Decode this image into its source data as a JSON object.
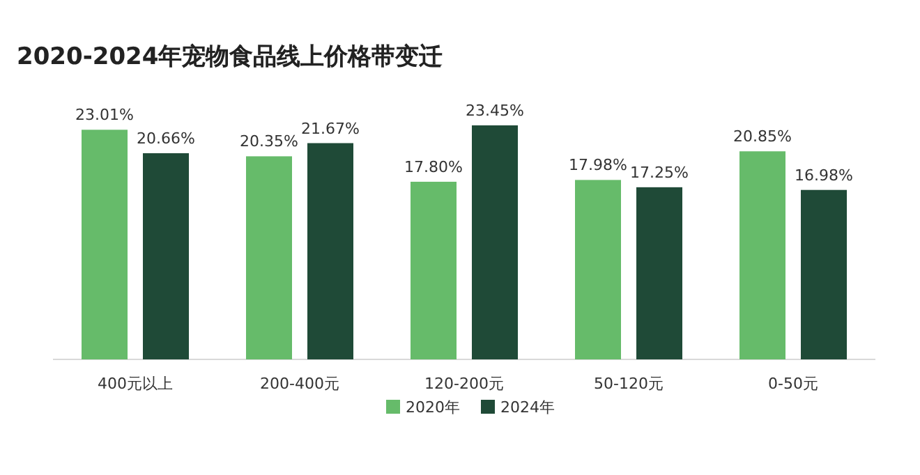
{
  "chart_data": {
    "type": "bar",
    "title": "2020-2024年宠物食品线上价格带变迁",
    "categories": [
      "400元以上",
      "200-400元",
      "120-200元",
      "50-120元",
      "0-50元"
    ],
    "series": [
      {
        "name": "2020年",
        "color": "#66bb6a",
        "values": [
          23.01,
          20.35,
          17.8,
          17.98,
          20.85
        ],
        "value_labels": [
          "23.01%",
          "20.35%",
          "17.80%",
          "17.98%",
          "20.85%"
        ]
      },
      {
        "name": "2024年",
        "color": "#1f4a37",
        "values": [
          20.66,
          21.67,
          23.45,
          17.25,
          16.98
        ],
        "value_labels": [
          "20.66%",
          "21.67%",
          "23.45%",
          "17.25%",
          "16.98%"
        ]
      }
    ],
    "legend": "bottom"
  }
}
